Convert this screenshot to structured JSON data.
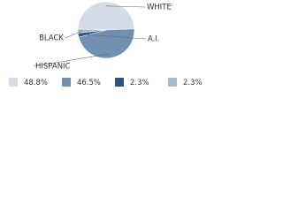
{
  "chart_data": {
    "type": "pie",
    "categories": [
      "WHITE",
      "HISPANIC",
      "A.I.",
      "BLACK"
    ],
    "values": [
      48.8,
      46.5,
      2.3,
      2.3
    ],
    "value_labels": [
      "48.8%",
      "46.5%",
      "2.3%",
      "2.3%"
    ],
    "colors": [
      "#d5dce7",
      "#7190b1",
      "#2c5480",
      "#a8b9cc"
    ]
  }
}
